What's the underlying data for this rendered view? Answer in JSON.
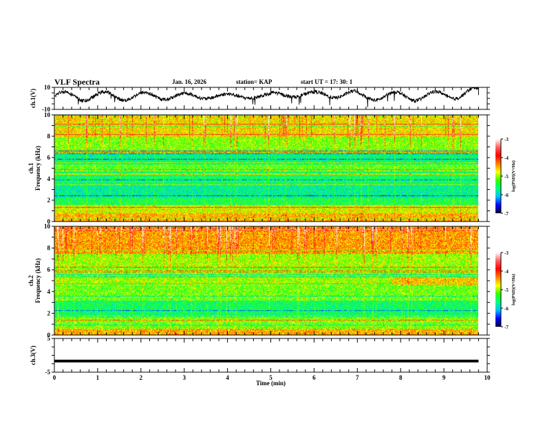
{
  "header": {
    "title": "VLF Spectra",
    "date": "Jan. 16, 2026",
    "station": "station= KAP",
    "start": "start UT =  17: 30: 1"
  },
  "colors": {
    "axis": "#000000",
    "trace": "#000000",
    "colormap": [
      "#000033",
      "#0000ff",
      "#00c0ff",
      "#00ff80",
      "#33ff00",
      "#ffff00",
      "#ff8000",
      "#ff0000",
      "#ff6060",
      "#ffffff"
    ]
  },
  "chart_data": [
    {
      "type": "line",
      "name": "ch1-voltage",
      "ylabel": "ch.1(V)",
      "ylim": [
        -10,
        10
      ],
      "yticks": [
        "10",
        "-10"
      ],
      "xlim": [
        0,
        10
      ],
      "data_end_min": 9.8,
      "description_series": "noisy oscillating voltage trace, roughly between -4 and 8 V"
    },
    {
      "type": "heatmap",
      "name": "ch1-spectrogram",
      "ylabel": "ch.1\nFrequency (kHz)",
      "ylabel_lines": [
        "ch.1",
        "Frequency (kHz)"
      ],
      "ylim": [
        0,
        10
      ],
      "yticks": [
        "0",
        "2",
        "4",
        "6",
        "8",
        "10"
      ],
      "xlim": [
        0,
        10
      ],
      "colorbar": {
        "label": "log(PSD)(V²/Hz)",
        "range": [
          -7,
          -3
        ],
        "ticks": [
          "-3",
          "-4",
          "-5",
          "-6",
          "-7"
        ]
      }
    },
    {
      "type": "heatmap",
      "name": "ch2-spectrogram",
      "ylabel": "ch.2\nFrequency (kHz)",
      "ylabel_lines": [
        "ch.2",
        "Frequency (kHz)"
      ],
      "ylim": [
        0,
        10
      ],
      "yticks": [
        "0",
        "2",
        "4",
        "6",
        "8",
        "10"
      ],
      "xlim": [
        0,
        10
      ],
      "colorbar": {
        "label": "log(PSD)(V²/Hz)",
        "range": [
          -7,
          -3
        ],
        "ticks": [
          "-3",
          "-4",
          "-5",
          "-6",
          "-7"
        ]
      }
    },
    {
      "type": "line",
      "name": "ch3-voltage",
      "ylabel": "ch.3(V)",
      "ylim": [
        -5,
        5
      ],
      "yticks": [
        "5",
        "-5"
      ],
      "xlim": [
        0,
        10
      ],
      "level_v": [
        -1.3,
        -2.1
      ],
      "xlabel": "Time (min)",
      "xticks": [
        "0",
        "1",
        "2",
        "3",
        "4",
        "5",
        "6",
        "7",
        "8",
        "9",
        "10"
      ]
    }
  ]
}
